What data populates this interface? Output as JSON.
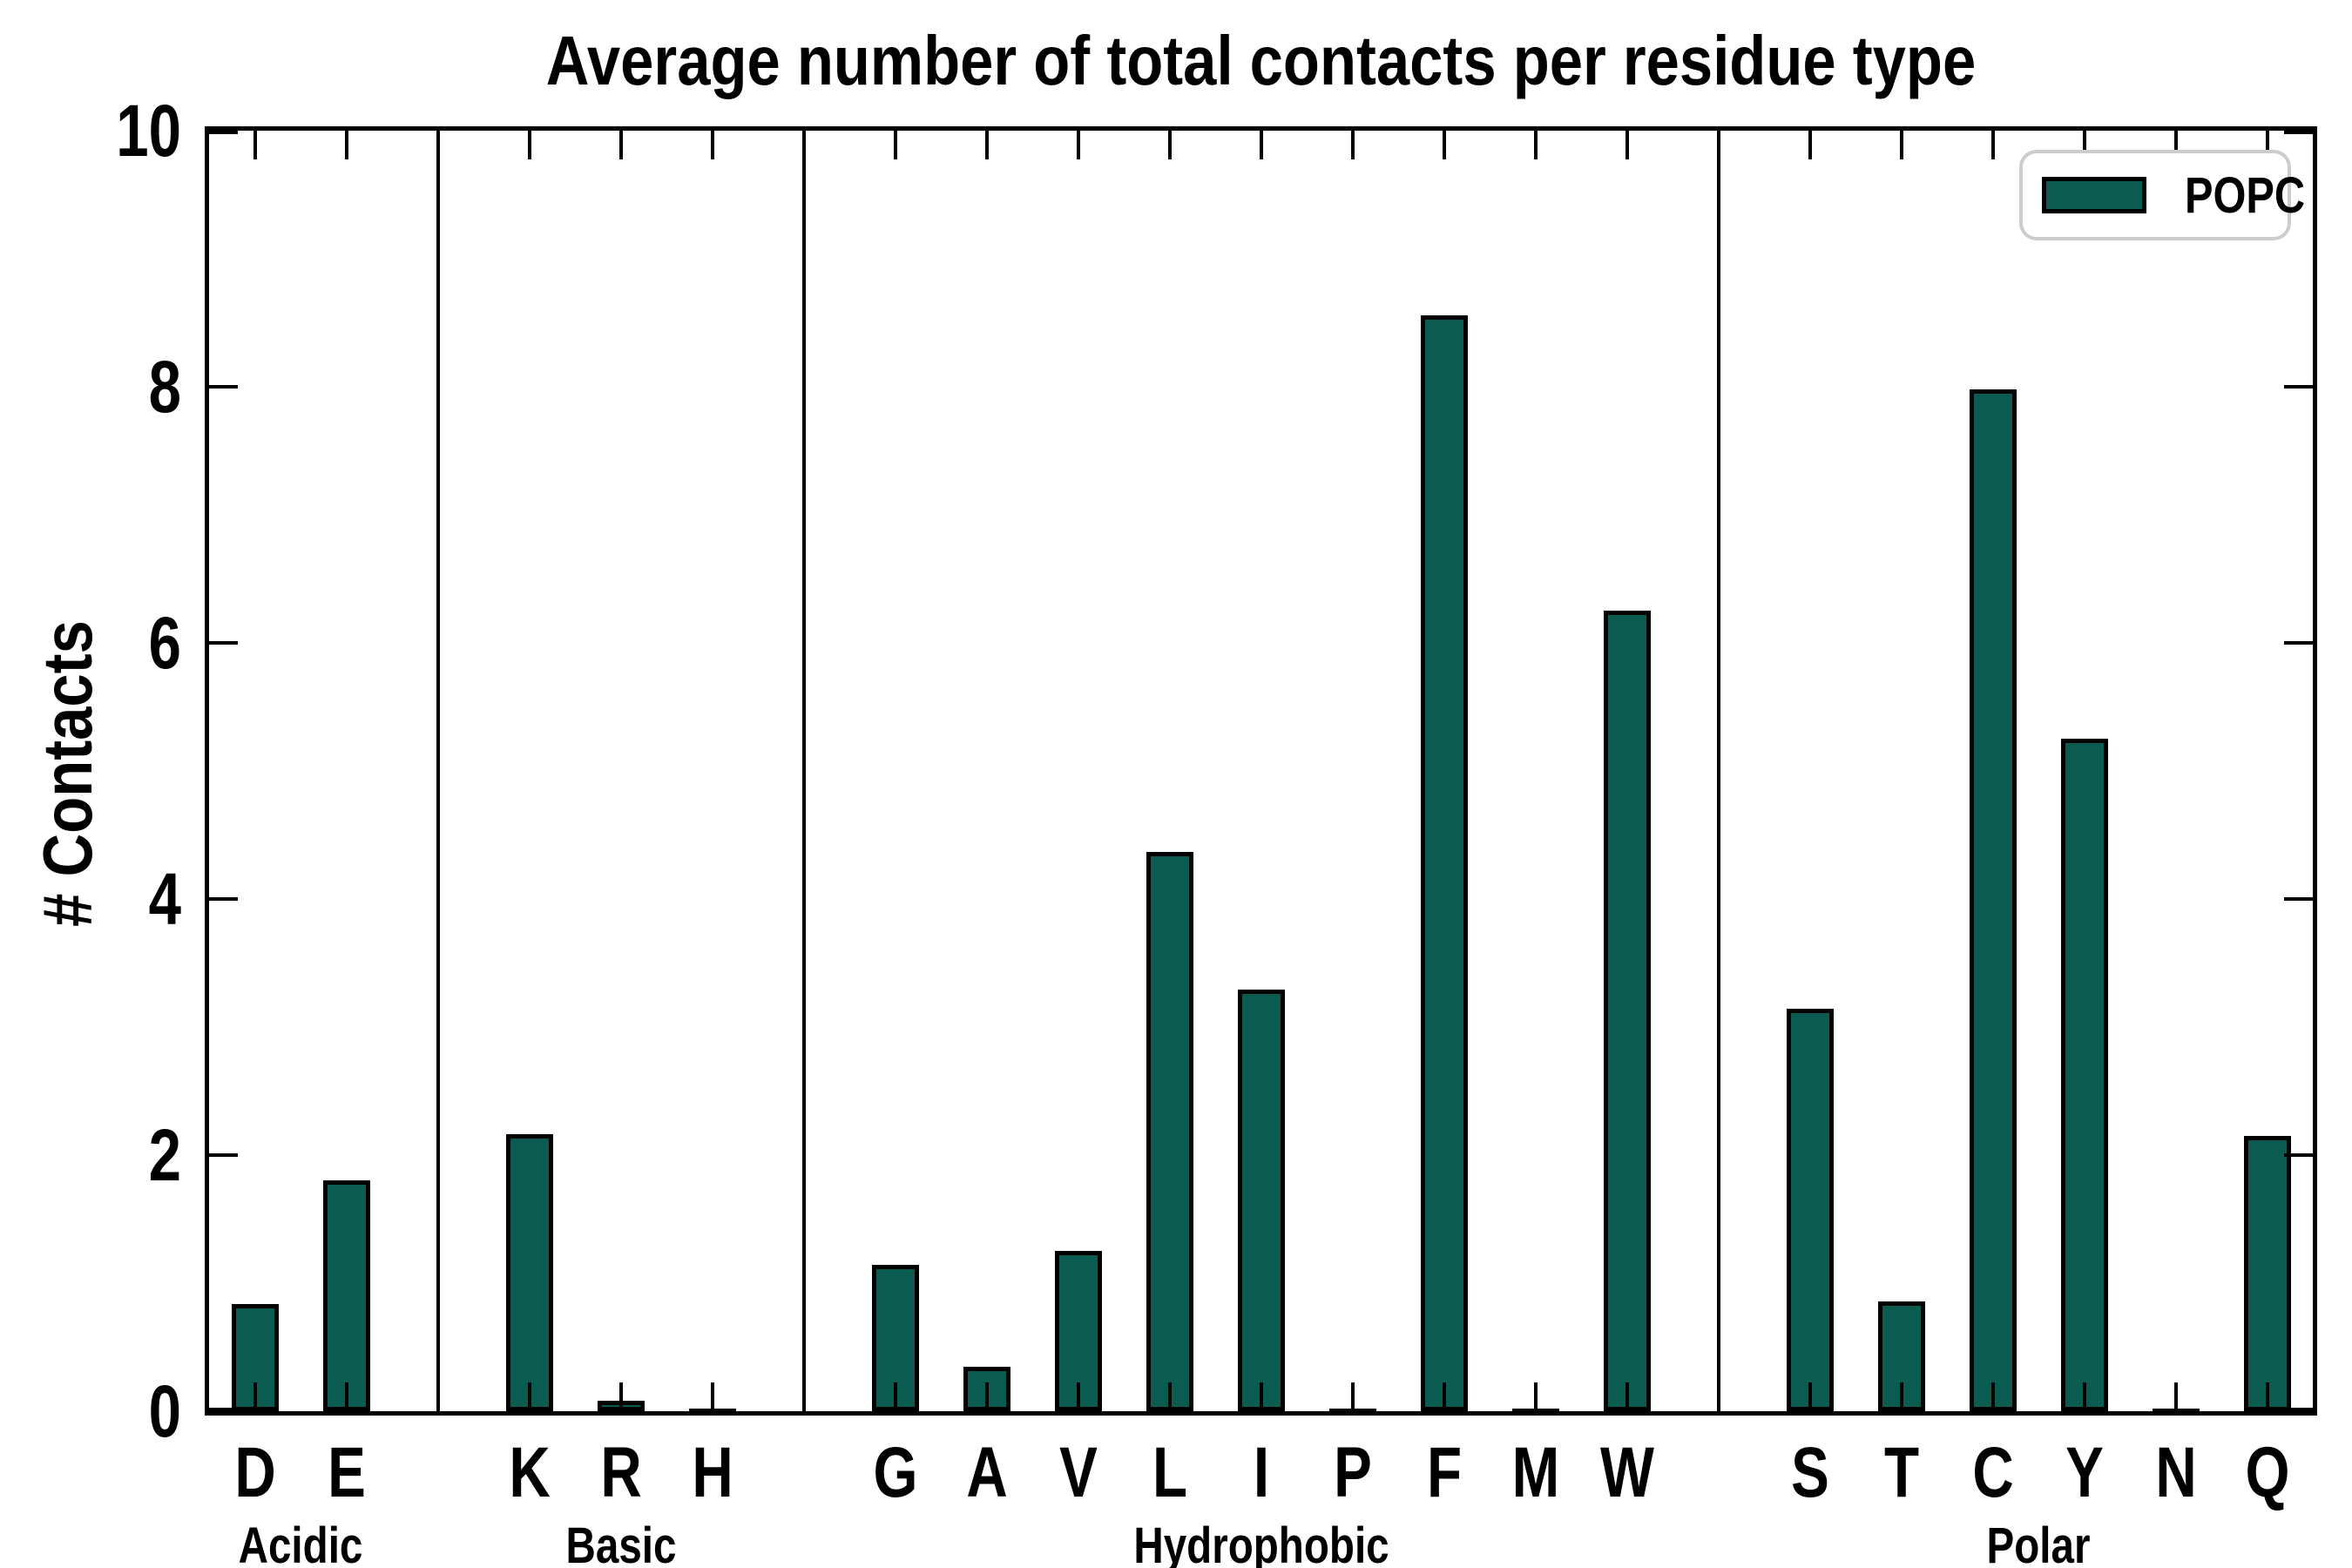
{
  "title": "Average number of total contacts per residue type",
  "ylabel": "# Contacts",
  "legend": {
    "label": "POPC"
  },
  "colors": {
    "bar_fill": "#0a5c50",
    "bar_edge": "#000000",
    "axis": "#000000",
    "legend_border": "#cccccc",
    "background": "#ffffff"
  },
  "chart_data": {
    "type": "bar",
    "title": "Average number of total contacts per residue type",
    "xlabel": "",
    "ylabel": "# Contacts",
    "ylim": [
      0,
      10
    ],
    "yticks": [
      0,
      2,
      4,
      6,
      8,
      10
    ],
    "grid": false,
    "legend_position": "upper right",
    "categories": [
      "D",
      "E",
      "K",
      "R",
      "H",
      "G",
      "A",
      "V",
      "L",
      "I",
      "P",
      "F",
      "M",
      "W",
      "S",
      "T",
      "C",
      "Y",
      "N",
      "Q"
    ],
    "series": [
      {
        "name": "POPC",
        "values": [
          0.84,
          1.8,
          2.16,
          0.08,
          0.02,
          1.14,
          0.35,
          1.25,
          4.37,
          3.29,
          0.02,
          8.56,
          0.02,
          6.25,
          3.14,
          0.86,
          7.98,
          5.25,
          0.02,
          2.15
        ]
      }
    ],
    "groups": [
      {
        "label": "Acidic",
        "categories": [
          "D",
          "E"
        ],
        "values": [
          0.84,
          1.8
        ]
      },
      {
        "label": "Basic",
        "categories": [
          "K",
          "R",
          "H"
        ],
        "values": [
          2.16,
          0.08,
          0.02
        ]
      },
      {
        "label": "Hydrophobic",
        "categories": [
          "G",
          "A",
          "V",
          "L",
          "I",
          "P",
          "F",
          "M",
          "W"
        ],
        "values": [
          1.14,
          0.35,
          1.25,
          4.37,
          3.29,
          0.02,
          8.56,
          0.02,
          6.25
        ]
      },
      {
        "label": "Polar",
        "categories": [
          "S",
          "T",
          "C",
          "Y",
          "N",
          "Q"
        ],
        "values": [
          3.14,
          0.86,
          7.98,
          5.25,
          0.02,
          2.15
        ]
      }
    ]
  }
}
